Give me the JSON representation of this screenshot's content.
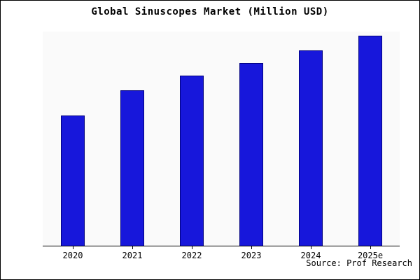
{
  "chart_data": {
    "type": "bar",
    "title": "Global Sinuscopes Market (Million USD)",
    "categories": [
      "2020",
      "2021",
      "2022",
      "2023",
      "2024",
      "2025e"
    ],
    "values": [
      62,
      74,
      81,
      87,
      93,
      100
    ],
    "xlabel": "",
    "ylabel": "",
    "ylim": [
      0,
      102
    ],
    "grid": false,
    "legend": false,
    "bar_fill_color": "#1717db",
    "bar_border_color": "#000080",
    "source_note": "Source: Prof Research"
  }
}
